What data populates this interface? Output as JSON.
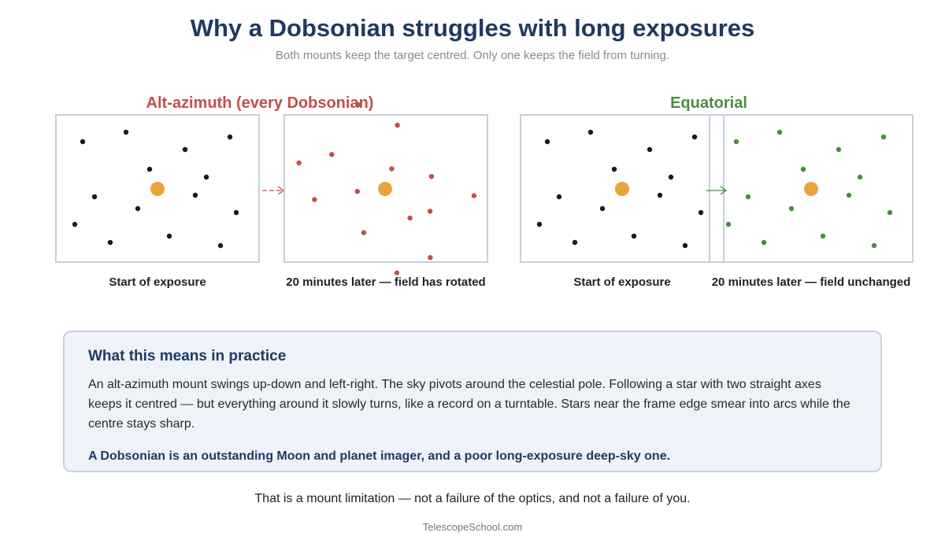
{
  "title": "Why a Dobsonian struggles with long exposures",
  "subtitle": "Both mounts keep the target centred. Only one keeps the field from turning.",
  "panels": {
    "altaz": {
      "title": "Alt-azimuth (every Dobsonian)",
      "color": "#c0504d",
      "start_caption": "Start of exposure",
      "later_caption": "20 minutes later — field has rotated"
    },
    "equatorial": {
      "title": "Equatorial",
      "color": "#4a8c3f",
      "start_caption": "Start of exposure",
      "later_caption": "20 minutes later — field unchanged"
    }
  },
  "colors": {
    "target": "#e8a33a",
    "start_star": "#1a1a1a",
    "frame_border": "#c6cfdb"
  },
  "info": {
    "heading": "What this means in practice",
    "body": "An alt-azimuth mount swings up-down and left-right. The sky pivots around the celestial pole. Following a star with two straight axes keeps it centred — but everything around it slowly turns, like a record on a turntable. Stars near the frame edge smear into arcs while the centre stays sharp.",
    "emphasis": "A Dobsonian is an outstanding Moon and planet imager, and a poor long-exposure deep-sky one."
  },
  "closing": "That is a mount limitation — not a failure of the optics, and not a failure of you.",
  "footer": "TelescopeSchool.com"
}
